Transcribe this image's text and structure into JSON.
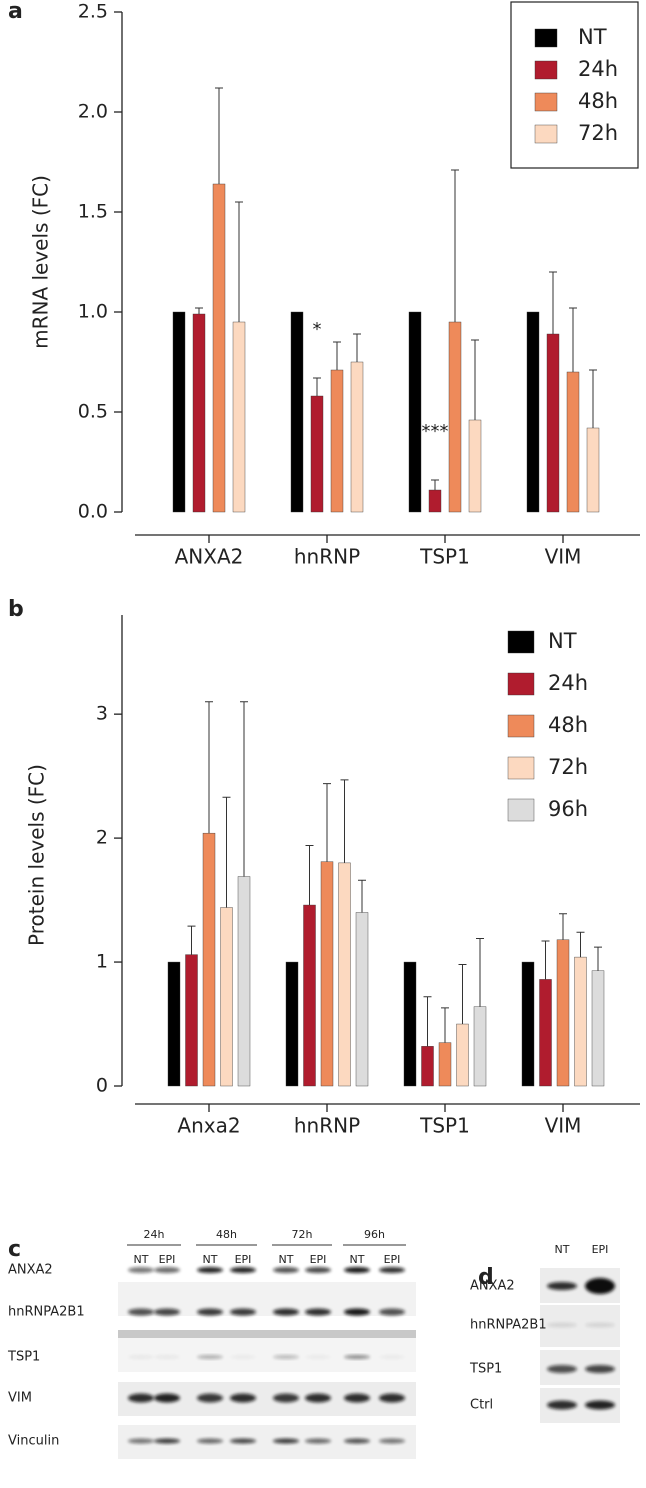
{
  "chart_data": [
    {
      "type": "bar",
      "panel_label": "a",
      "y_label": "mRNA levels (FC)",
      "categories": [
        "ANXA2",
        "hnRNP",
        "TSP1",
        "VIM"
      ],
      "series": [
        {
          "name": "NT",
          "color": "#000000",
          "values": [
            1.0,
            1.0,
            1.0,
            1.0
          ],
          "errors": [
            null,
            null,
            null,
            null
          ]
        },
        {
          "name": "24h",
          "color": "#b01c2e",
          "values": [
            0.99,
            0.58,
            0.11,
            0.89
          ],
          "errors": [
            0.03,
            0.09,
            0.05,
            0.31
          ]
        },
        {
          "name": "48h",
          "color": "#ee8a5a",
          "values": [
            1.64,
            0.71,
            0.95,
            0.7
          ],
          "errors": [
            0.48,
            0.14,
            0.76,
            0.32
          ]
        },
        {
          "name": "72h",
          "color": "#fcd9c0",
          "values": [
            0.95,
            0.75,
            0.46,
            0.42
          ],
          "errors": [
            0.6,
            0.14,
            0.4,
            0.29
          ]
        }
      ],
      "ylim": [
        0,
        2.5
      ],
      "yticks": [
        {
          "value": 0,
          "label": "0.0"
        },
        0.5,
        {
          "value": 1,
          "label": "1.0"
        },
        1.5,
        {
          "value": 2,
          "label": "2.0"
        },
        2.5
      ],
      "legend": "top-right",
      "legend_box": true,
      "annotations": [
        {
          "text": "*",
          "category": "hnRNP",
          "series": "24h"
        },
        {
          "text": "***",
          "category": "TSP1",
          "series": "24h"
        }
      ]
    },
    {
      "type": "bar",
      "panel_label": "b",
      "y_label": "Protein levels (FC)",
      "categories": [
        "Anxa2",
        "hnRNP",
        "TSP1",
        "VIM"
      ],
      "series": [
        {
          "name": "NT",
          "color": "#000000",
          "values": [
            1.0,
            1.0,
            1.0,
            1.0
          ],
          "errors": [
            null,
            null,
            null,
            null
          ]
        },
        {
          "name": "24h",
          "color": "#b01c2e",
          "values": [
            1.06,
            1.46,
            0.32,
            0.86
          ],
          "errors": [
            0.23,
            0.48,
            0.4,
            0.31
          ]
        },
        {
          "name": "48h",
          "color": "#ee8a5a",
          "values": [
            2.04,
            1.81,
            0.35,
            1.18
          ],
          "errors": [
            1.06,
            0.63,
            0.28,
            0.21
          ]
        },
        {
          "name": "72h",
          "color": "#fcd9c0",
          "values": [
            1.44,
            1.8,
            0.5,
            1.04
          ],
          "errors": [
            0.89,
            0.67,
            0.48,
            0.2
          ]
        },
        {
          "name": "96h",
          "color": "#dcdcdc",
          "values": [
            1.69,
            1.4,
            0.64,
            0.93
          ],
          "errors": [
            1.41,
            0.26,
            0.55,
            0.19
          ]
        }
      ],
      "ylim": [
        0,
        3.8
      ],
      "yticks": [
        0,
        1,
        2,
        3
      ],
      "legend": "top-right",
      "legend_box": false,
      "annotations": []
    }
  ],
  "blots": [
    {
      "panel_label": "c",
      "timepoints": [
        "24h",
        "48h",
        "72h",
        "96h"
      ],
      "lanes": [
        "NT",
        "EPI",
        "NT",
        "EPI",
        "NT",
        "EPI",
        "NT",
        "EPI"
      ],
      "rows": [
        "ANXA2",
        "hnRNPA2B1",
        "TSP1",
        "VIM",
        "Vinculin"
      ]
    },
    {
      "panel_label": "d",
      "lanes": [
        "NT",
        "EPI"
      ],
      "rows": [
        "ANXA2",
        "hnRNPA2B1",
        "TSP1",
        "Ctrl"
      ]
    }
  ]
}
